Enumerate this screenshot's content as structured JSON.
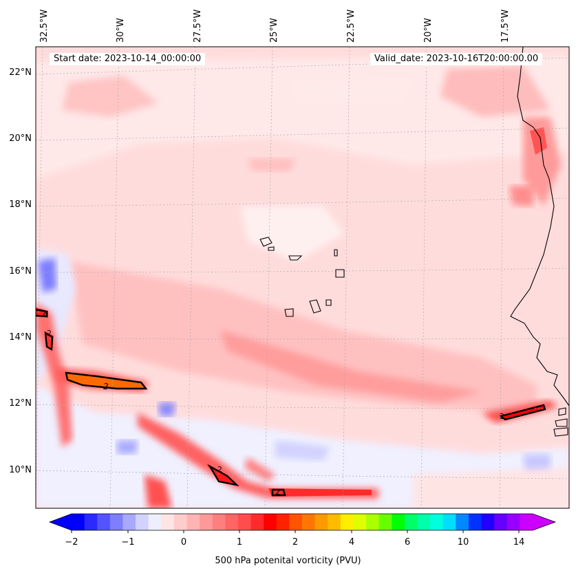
{
  "map": {
    "start_date": "Start date: 2023-10-14_00:00:00",
    "valid_date": "Valid_date: 2023-10-16T20:00:00.00",
    "longitude_labels": [
      "32.5°W",
      "30°W",
      "27.5°W",
      "25°W",
      "22.5°W",
      "20°W",
      "17.5°W"
    ],
    "latitude_labels": [
      "22°N",
      "20°N",
      "18°N",
      "16°N",
      "14°N",
      "12°N",
      "10°N"
    ],
    "contour_value_label": "2",
    "contour_labels": [
      "2",
      "2",
      "2",
      "2",
      "2",
      "2"
    ]
  },
  "colorbar": {
    "title": "500 hPa potenital vorticity (PVU)",
    "tick_labels": [
      "−2",
      "−1",
      "0",
      "1",
      "2",
      "4",
      "6",
      "10",
      "14"
    ],
    "range": [
      -2,
      15
    ],
    "colors": [
      "#0000ff",
      "#2a2aff",
      "#5454ff",
      "#7e7eff",
      "#a8a8ff",
      "#d2d2ff",
      "#eeeeff",
      "#ffe4e4",
      "#ffcccc",
      "#ffb4b4",
      "#ff9999",
      "#ff7f7f",
      "#ff6565",
      "#ff4d4d",
      "#ff2b2b",
      "#ff0000",
      "#ff2200",
      "#ff5500",
      "#ff7700",
      "#ff9900",
      "#ffbb00",
      "#ffee00",
      "#ddff00",
      "#aaff00",
      "#66ff00",
      "#00ff00",
      "#00ff66",
      "#00ffaa",
      "#00ffdd",
      "#00ddff",
      "#0088ff",
      "#0033ff",
      "#2200ff",
      "#6600ff",
      "#9900ff",
      "#cc00ff"
    ]
  }
}
